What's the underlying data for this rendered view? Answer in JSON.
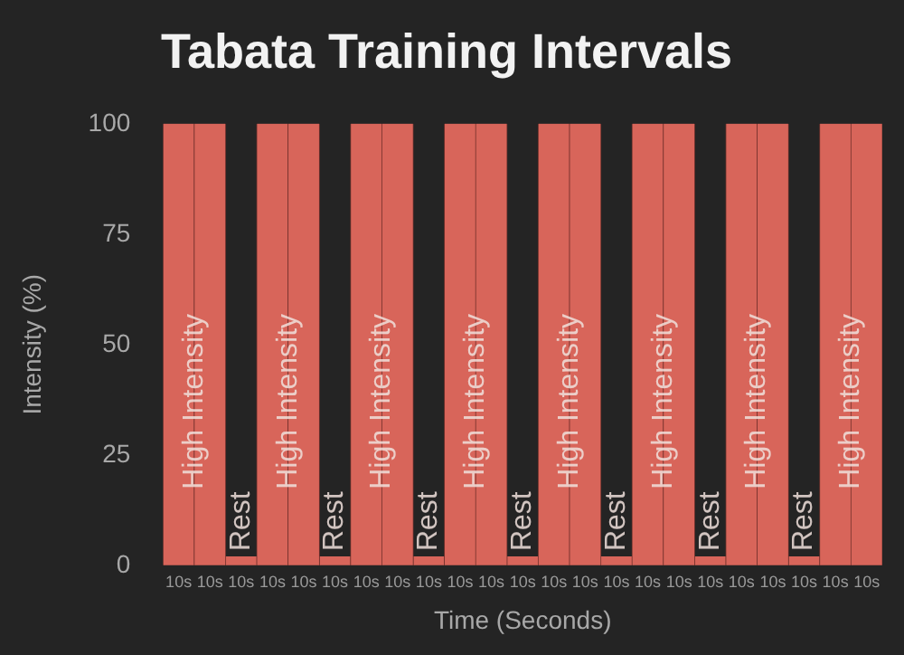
{
  "chart_data": {
    "type": "bar",
    "title": "Tabata Training Intervals",
    "xlabel": "Time (Seconds)",
    "ylabel": "Intensity (%)",
    "categories": [
      "10s",
      "10s",
      "10s",
      "10s",
      "10s",
      "10s",
      "10s",
      "10s",
      "10s",
      "10s",
      "10s",
      "10s",
      "10s",
      "10s",
      "10s",
      "10s",
      "10s",
      "10s",
      "10s",
      "10s",
      "10s",
      "10s",
      "10s"
    ],
    "series": [
      {
        "name": "High Intensity",
        "color": "#d8655a",
        "values": [
          100,
          100,
          null,
          100,
          100,
          null,
          100,
          100,
          null,
          100,
          100,
          null,
          100,
          100,
          null,
          100,
          100,
          null,
          100,
          100,
          null,
          100,
          100
        ]
      },
      {
        "name": "Rest",
        "color": "#d8655a",
        "values": [
          null,
          null,
          2,
          null,
          null,
          2,
          null,
          null,
          2,
          null,
          null,
          2,
          null,
          null,
          2,
          null,
          null,
          2,
          null,
          null,
          2,
          null,
          null
        ]
      }
    ],
    "ylim": [
      0,
      100
    ],
    "yticks": [
      0,
      25,
      50,
      75,
      100
    ],
    "grid": false,
    "legend": false
  }
}
